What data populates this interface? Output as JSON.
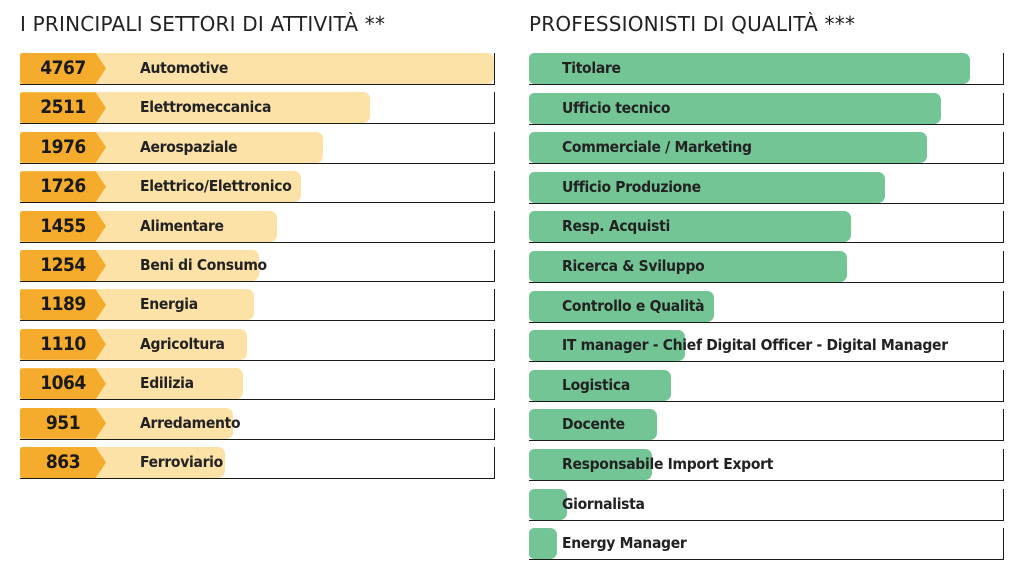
{
  "chart_data": [
    {
      "type": "bar",
      "title": "I PRINCIPALI SETTORI DI ATTIVITÀ **",
      "orientation": "horizontal",
      "categories": [
        "Automotive",
        "Elettromeccanica",
        "Aerospaziale",
        "Elettrico/Elettronico",
        "Alimentare",
        "Beni di Consumo",
        "Energia",
        "Agricoltura",
        "Edilizia",
        "Arredamento",
        "Ferroviario"
      ],
      "values": [
        4767,
        2511,
        1976,
        1726,
        1455,
        1254,
        1189,
        1110,
        1064,
        951,
        863
      ],
      "colors": {
        "bar": "#fde2a8",
        "badge": "#f5ac2c"
      }
    },
    {
      "type": "bar",
      "title": "PROFESSIONISTI DI QUALITÀ ***",
      "orientation": "horizontal",
      "categories": [
        "Titolare",
        "Ufficio tecnico",
        "Commerciale / Marketing",
        "Ufficio Produzione",
        "Resp. Acquisti",
        "Ricerca & Sviluppo",
        "Controllo e Qualità",
        "IT manager - Chief Digital Officer - Digital Manager",
        "Logistica",
        "Docente",
        "Responsabile Import Export",
        "Giornalista",
        "Energy Manager"
      ],
      "values": [
        0.93,
        0.87,
        0.84,
        0.75,
        0.68,
        0.67,
        0.39,
        0.33,
        0.3,
        0.27,
        0.26,
        0.08,
        0.06
      ],
      "colors": {
        "bar": "#74c596"
      }
    }
  ]
}
